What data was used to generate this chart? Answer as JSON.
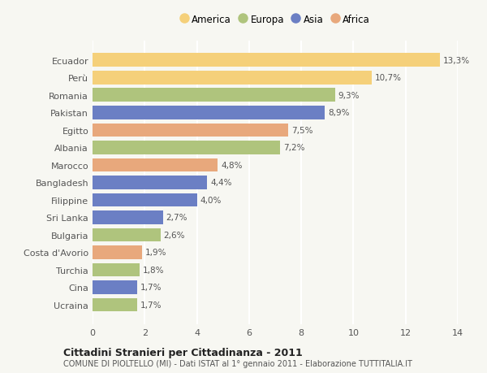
{
  "categories": [
    "Ucraina",
    "Cina",
    "Turchia",
    "Costa d'Avorio",
    "Bulgaria",
    "Sri Lanka",
    "Filippine",
    "Bangladesh",
    "Marocco",
    "Albania",
    "Egitto",
    "Pakistan",
    "Romania",
    "Perù",
    "Ecuador"
  ],
  "values": [
    1.7,
    1.7,
    1.8,
    1.9,
    2.6,
    2.7,
    4.0,
    4.4,
    4.8,
    7.2,
    7.5,
    8.9,
    9.3,
    10.7,
    13.3
  ],
  "labels": [
    "1,7%",
    "1,7%",
    "1,8%",
    "1,9%",
    "2,6%",
    "2,7%",
    "4,0%",
    "4,4%",
    "4,8%",
    "7,2%",
    "7,5%",
    "8,9%",
    "9,3%",
    "10,7%",
    "13,3%"
  ],
  "colors": [
    "#afc47d",
    "#6b7fc4",
    "#afc47d",
    "#e8a87c",
    "#afc47d",
    "#6b7fc4",
    "#6b7fc4",
    "#6b7fc4",
    "#e8a87c",
    "#afc47d",
    "#e8a87c",
    "#6b7fc4",
    "#afc47d",
    "#f5d07a",
    "#f5d07a"
  ],
  "legend": [
    {
      "label": "America",
      "color": "#f5d07a"
    },
    {
      "label": "Europa",
      "color": "#afc47d"
    },
    {
      "label": "Asia",
      "color": "#6b7fc4"
    },
    {
      "label": "Africa",
      "color": "#e8a87c"
    }
  ],
  "xlim": [
    0,
    14
  ],
  "xticks": [
    0,
    2,
    4,
    6,
    8,
    10,
    12,
    14
  ],
  "title": "Cittadini Stranieri per Cittadinanza - 2011",
  "subtitle": "COMUNE DI PIOLTELLO (MI) - Dati ISTAT al 1° gennaio 2011 - Elaborazione TUTTITALIA.IT",
  "background_color": "#f7f7f2",
  "grid_color": "#ffffff",
  "bar_height": 0.78
}
